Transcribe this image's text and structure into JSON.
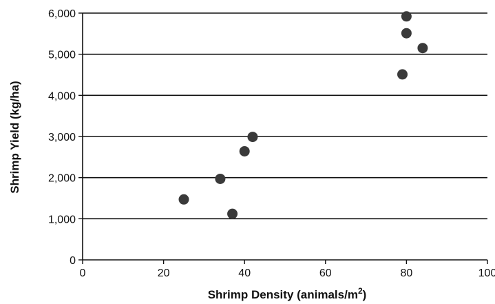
{
  "chart_data": {
    "type": "scatter",
    "title": "",
    "xlabel": "Shrimp Density (animals/m",
    "xlabel_sup": "2",
    "xlabel_suffix": ")",
    "ylabel": "Shrimp Yield (kg/ha)",
    "xlim": [
      0,
      100
    ],
    "ylim": [
      0,
      6000
    ],
    "x_ticks": [
      0,
      20,
      40,
      60,
      80,
      100
    ],
    "x_tick_labels": [
      "0",
      "20",
      "40",
      "60",
      "80",
      "100"
    ],
    "y_ticks": [
      0,
      1000,
      2000,
      3000,
      4000,
      5000,
      6000
    ],
    "y_tick_labels": [
      "0",
      "1,000",
      "2,000",
      "3,000",
      "4,000",
      "5,000",
      "6,000"
    ],
    "grid": "horizontal",
    "legend": "none",
    "series": [
      {
        "points": [
          {
            "x": 25,
            "y": 1470
          },
          {
            "x": 34,
            "y": 1970
          },
          {
            "x": 37,
            "y": 1120
          },
          {
            "x": 40,
            "y": 2640
          },
          {
            "x": 42,
            "y": 2990
          },
          {
            "x": 79,
            "y": 4510
          },
          {
            "x": 80,
            "y": 5510
          },
          {
            "x": 80,
            "y": 5920
          },
          {
            "x": 84,
            "y": 5150
          }
        ]
      }
    ],
    "colors": {
      "marker": "#3a3a3a",
      "gridline": "#111111",
      "axis": "#111111",
      "text": "#111111"
    }
  }
}
